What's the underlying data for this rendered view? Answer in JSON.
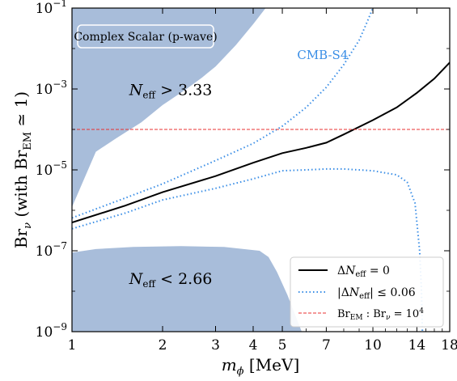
{
  "chart_data": {
    "type": "line",
    "title": "",
    "xlabel": "m_ϕ [MeV]",
    "ylabel": "Br_ν (with Br_EM ≃ 1)",
    "xscale": "log",
    "yscale": "log",
    "xlim": [
      1,
      18
    ],
    "ylim": [
      1e-09,
      0.1
    ],
    "grid": false,
    "legend_position": "bottom-right",
    "x_ticks": [
      {
        "value": 1,
        "label": "1"
      },
      {
        "value": 2,
        "label": "2"
      },
      {
        "value": 3,
        "label": "3"
      },
      {
        "value": 4,
        "label": "4"
      },
      {
        "value": 5,
        "label": "5"
      },
      {
        "value": 7,
        "label": "7"
      },
      {
        "value": 10,
        "label": "10"
      },
      {
        "value": 14,
        "label": "14"
      },
      {
        "value": 18,
        "label": "18"
      }
    ],
    "y_ticks": [
      {
        "value": 1e-09,
        "base": "10",
        "exp": "−9"
      },
      {
        "value": 1e-07,
        "base": "10",
        "exp": "−7"
      },
      {
        "value": 1e-05,
        "base": "10",
        "exp": "−5"
      },
      {
        "value": 0.001,
        "base": "10",
        "exp": "−3"
      },
      {
        "value": 0.1,
        "base": "10",
        "exp": "−1"
      }
    ],
    "panel_label": "Complex Scalar (p-wave)",
    "annotations": [
      {
        "text": "CMB-S4",
        "x": 5.6,
        "y": 0.0055,
        "color": "#3a8ee6"
      },
      {
        "text": "N_eff > 3.33",
        "x": 1.55,
        "y": 0.0007,
        "color": "#000000"
      },
      {
        "text": "N_eff < 2.66",
        "x": 1.55,
        "y": 1.5e-08,
        "color": "#000000"
      }
    ],
    "regions": [
      {
        "name": "N_eff > 3.33 excluded",
        "color": "#a8bdda",
        "points": [
          [
            1,
            0.1
          ],
          [
            4.4,
            0.1
          ],
          [
            4.0,
            0.04
          ],
          [
            3.5,
            0.012
          ],
          [
            3.0,
            0.0036
          ],
          [
            2.7,
            0.0019
          ],
          [
            2.4,
            0.001
          ],
          [
            2.0,
            0.0004
          ],
          [
            1.7,
            0.00015
          ],
          [
            1.4,
            6e-05
          ],
          [
            1.2,
            2.8e-05
          ],
          [
            1.0,
            1.2e-06
          ]
        ]
      },
      {
        "name": "N_eff < 2.66 excluded",
        "color": "#a8bdda",
        "points": [
          [
            1,
            1e-09
          ],
          [
            1,
            9e-08
          ],
          [
            1.2,
            1.1e-07
          ],
          [
            1.6,
            1.25e-07
          ],
          [
            2.3,
            1.3e-07
          ],
          [
            3.2,
            1.25e-07
          ],
          [
            4.2,
            1e-07
          ],
          [
            4.5,
            7e-08
          ],
          [
            4.8,
            3e-08
          ],
          [
            5.2,
            8e-09
          ],
          [
            5.8,
            1e-09
          ]
        ]
      }
    ],
    "series": [
      {
        "name": "ΔN_eff = 0",
        "style": "solid",
        "color": "#000000",
        "points": [
          [
            1,
            5e-07
          ],
          [
            1.5,
            1.3e-06
          ],
          [
            2,
            2.8e-06
          ],
          [
            3,
            7e-06
          ],
          [
            4,
            1.5e-05
          ],
          [
            5,
            2.6e-05
          ],
          [
            6,
            3.5e-05
          ],
          [
            7,
            4.7e-05
          ],
          [
            8,
            7.5e-05
          ],
          [
            10,
            0.00017
          ],
          [
            12,
            0.00035
          ],
          [
            14,
            0.0008
          ],
          [
            16,
            0.0018
          ],
          [
            18,
            0.0045
          ]
        ]
      },
      {
        "name": "|ΔN_eff| ≤ 0.06",
        "style": "dotted",
        "color": "#3a8ee6",
        "points": [
          [
            1,
            6.5e-07
          ],
          [
            1.5,
            2e-06
          ],
          [
            2,
            4.5e-06
          ],
          [
            3,
            1.7e-05
          ],
          [
            4,
            4.5e-05
          ],
          [
            5,
            0.00012
          ],
          [
            6,
            0.00035
          ],
          [
            7,
            0.0011
          ],
          [
            8,
            0.004
          ],
          [
            9,
            0.016
          ],
          [
            9.5,
            0.04
          ],
          [
            10,
            0.1
          ]
        ]
      },
      {
        "name": "|ΔN_eff| ≤ 0.06 (lower)",
        "style": "dotted",
        "color": "#3a8ee6",
        "points": [
          [
            1,
            3.5e-07
          ],
          [
            1.5,
            8.5e-07
          ],
          [
            2,
            1.8e-06
          ],
          [
            3,
            3.5e-06
          ],
          [
            4,
            6e-06
          ],
          [
            5,
            9.5e-06
          ],
          [
            6,
            1e-05
          ],
          [
            7,
            1.05e-05
          ],
          [
            8,
            1.05e-05
          ],
          [
            10,
            9.5e-06
          ],
          [
            12,
            7.5e-06
          ],
          [
            13,
            5e-06
          ],
          [
            13.8,
            1.5e-06
          ],
          [
            14.3,
            1e-07
          ],
          [
            14.5,
            1e-08
          ],
          [
            14.6,
            1e-09
          ]
        ]
      },
      {
        "name": "Br_EM : Br_ν = 10⁴",
        "style": "dashed",
        "color": "#e83030",
        "points": [
          [
            1,
            0.0001
          ],
          [
            18,
            0.0001
          ]
        ]
      }
    ]
  },
  "legend": [
    {
      "label": "ΔN_eff  =  0",
      "style": "solid",
      "color": "#000000"
    },
    {
      "label": "|ΔN_eff| ≤ 0.06",
      "style": "dotted",
      "color": "#3a8ee6"
    },
    {
      "label": "Br_EM : Br_ν = 10⁴",
      "style": "dashed",
      "color": "#e83030"
    }
  ]
}
